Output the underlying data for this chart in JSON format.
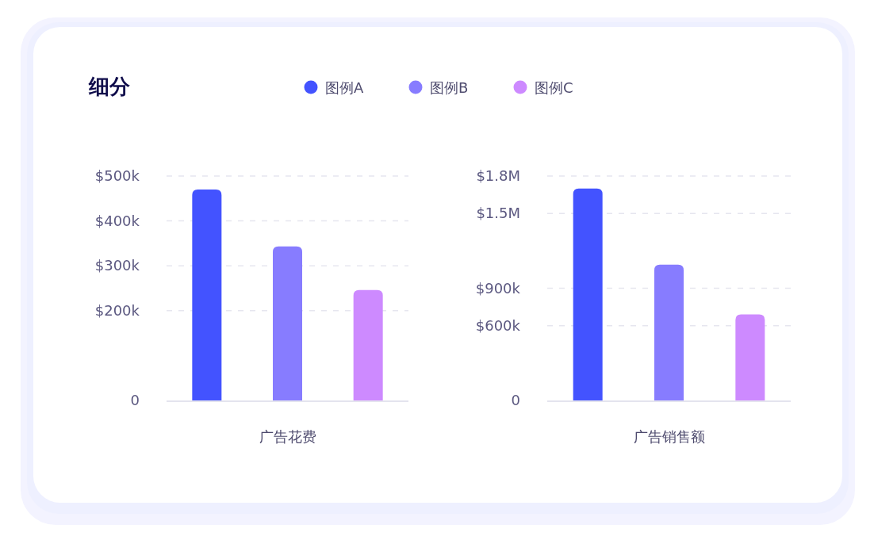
{
  "chart_data": [
    {
      "type": "bar",
      "title": "细分",
      "xlabel": "广告花费",
      "categories": [
        null,
        null,
        null
      ],
      "legend": "top",
      "grid": "y",
      "series": [
        {
          "name": "图例A",
          "color": "#4353ff",
          "values": [
            470000,
            null,
            null
          ]
        },
        {
          "name": "图例B",
          "color": "#877cff",
          "values": [
            null,
            343000,
            null
          ]
        },
        {
          "name": "图例C",
          "color": "#cd8aff",
          "values": [
            null,
            null,
            246000
          ]
        }
      ],
      "ylim": [
        0,
        500000
      ],
      "yticks": [
        {
          "value": 0,
          "label": "0"
        },
        {
          "value": 200000,
          "label": "$200k"
        },
        {
          "value": 300000,
          "label": "$300k"
        },
        {
          "value": 400000,
          "label": "$400k"
        },
        {
          "value": 500000,
          "label": "$500k"
        }
      ]
    },
    {
      "type": "bar",
      "xlabel": "广告销售额",
      "categories": [
        null,
        null,
        null
      ],
      "grid": "y",
      "series": [
        {
          "color": "#4353ff",
          "values": [
            1700000,
            null,
            null
          ]
        },
        {
          "color": "#877cff",
          "values": [
            null,
            1090000,
            null
          ]
        },
        {
          "color": "#cd8aff",
          "values": [
            null,
            null,
            690000
          ]
        }
      ],
      "ylim": [
        0,
        1800000
      ],
      "yticks": [
        {
          "value": 0,
          "label": "0"
        },
        {
          "value": 600000,
          "label": "$600k"
        },
        {
          "value": 900000,
          "label": "$900k"
        },
        {
          "value": 1500000,
          "label": "$1.5M"
        },
        {
          "value": 1800000,
          "label": "$1.8M"
        }
      ]
    }
  ]
}
